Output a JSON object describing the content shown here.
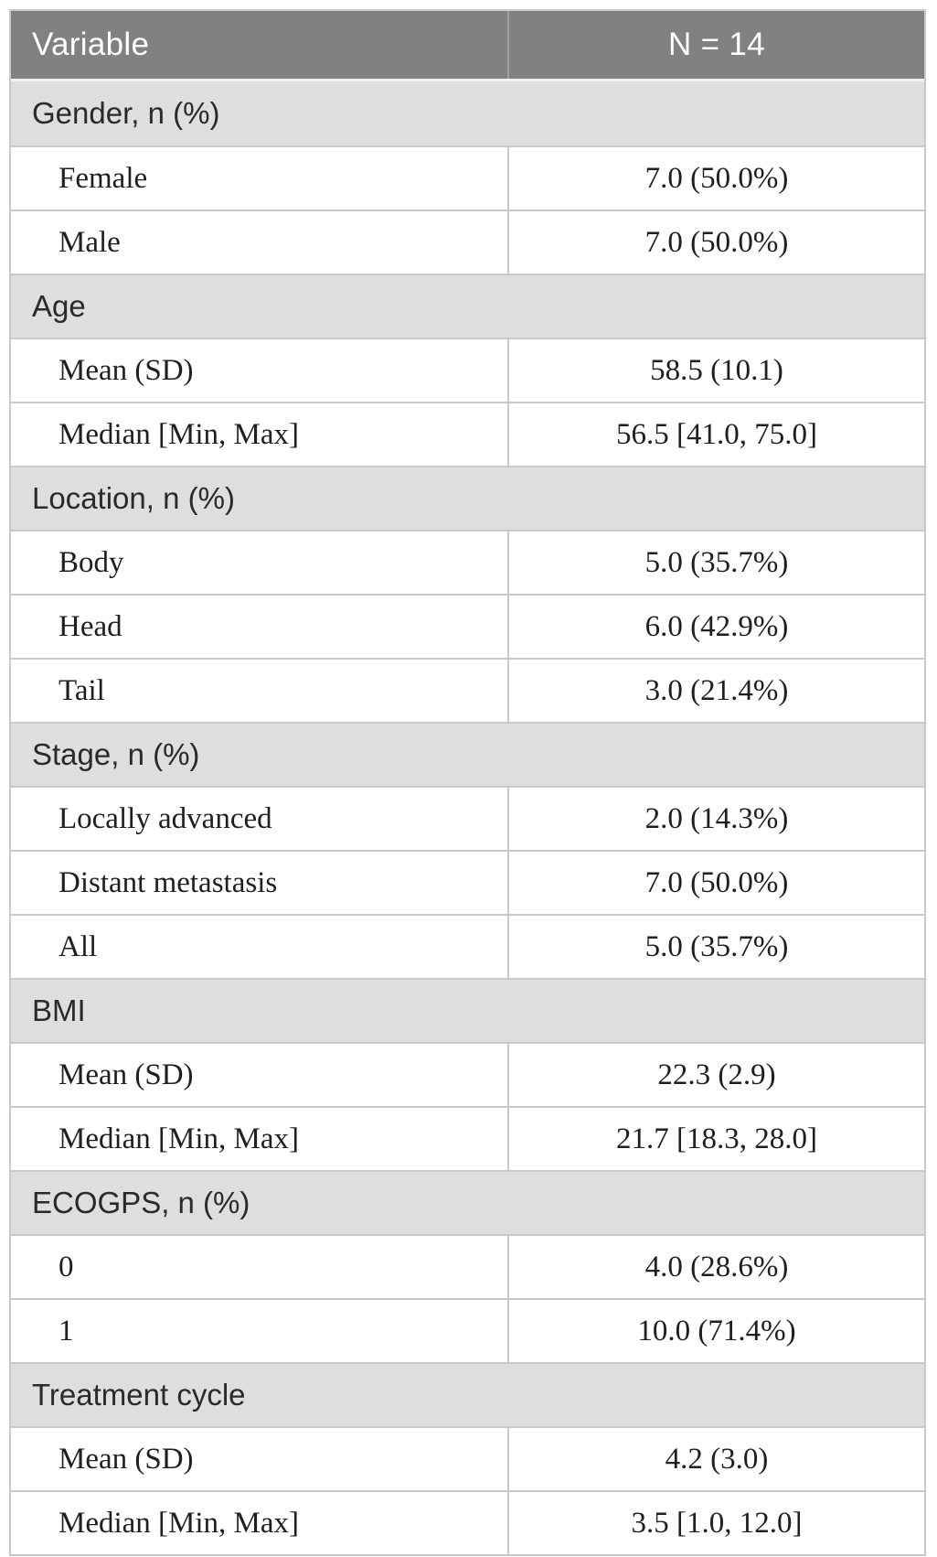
{
  "colors": {
    "header_bg": "#818181",
    "header_text": "#ffffff",
    "section_bg": "#dedede",
    "row_border": "#c9c9c9",
    "section_text": "#2a2a2a",
    "data_text": "#1f1f1f"
  },
  "table": {
    "header": {
      "variable_label": "Variable",
      "n_label": "N = 14"
    },
    "rows": [
      {
        "type": "section",
        "label": "Gender, n (%)"
      },
      {
        "type": "data",
        "label": "Female",
        "value": "7.0 (50.0%)"
      },
      {
        "type": "data",
        "label": "Male",
        "value": "7.0 (50.0%)"
      },
      {
        "type": "section",
        "label": "Age"
      },
      {
        "type": "data",
        "label": "Mean (SD)",
        "value": "58.5 (10.1)"
      },
      {
        "type": "data",
        "label": "Median [Min, Max]",
        "value": "56.5 [41.0, 75.0]"
      },
      {
        "type": "section",
        "label": "Location, n (%)"
      },
      {
        "type": "data",
        "label": "Body",
        "value": "5.0 (35.7%)"
      },
      {
        "type": "data",
        "label": "Head",
        "value": "6.0 (42.9%)"
      },
      {
        "type": "data",
        "label": "Tail",
        "value": "3.0 (21.4%)"
      },
      {
        "type": "section",
        "label": "Stage, n (%)"
      },
      {
        "type": "data",
        "label": "Locally advanced",
        "value": "2.0 (14.3%)"
      },
      {
        "type": "data",
        "label": "Distant metastasis",
        "value": "7.0 (50.0%)"
      },
      {
        "type": "data",
        "label": "All",
        "value": "5.0 (35.7%)"
      },
      {
        "type": "section",
        "label": "BMI"
      },
      {
        "type": "data",
        "label": "Mean (SD)",
        "value": "22.3 (2.9)"
      },
      {
        "type": "data",
        "label": "Median [Min, Max]",
        "value": "21.7 [18.3, 28.0]"
      },
      {
        "type": "section",
        "label": "ECOGPS, n (%)"
      },
      {
        "type": "data",
        "label": "0",
        "value": "4.0 (28.6%)"
      },
      {
        "type": "data",
        "label": "1",
        "value": "10.0 (71.4%)"
      },
      {
        "type": "section",
        "label": "Treatment cycle"
      },
      {
        "type": "data",
        "label": "Mean (SD)",
        "value": "4.2 (3.0)"
      },
      {
        "type": "data",
        "label": "Median [Min, Max]",
        "value": "3.5 [1.0, 12.0]"
      }
    ]
  }
}
